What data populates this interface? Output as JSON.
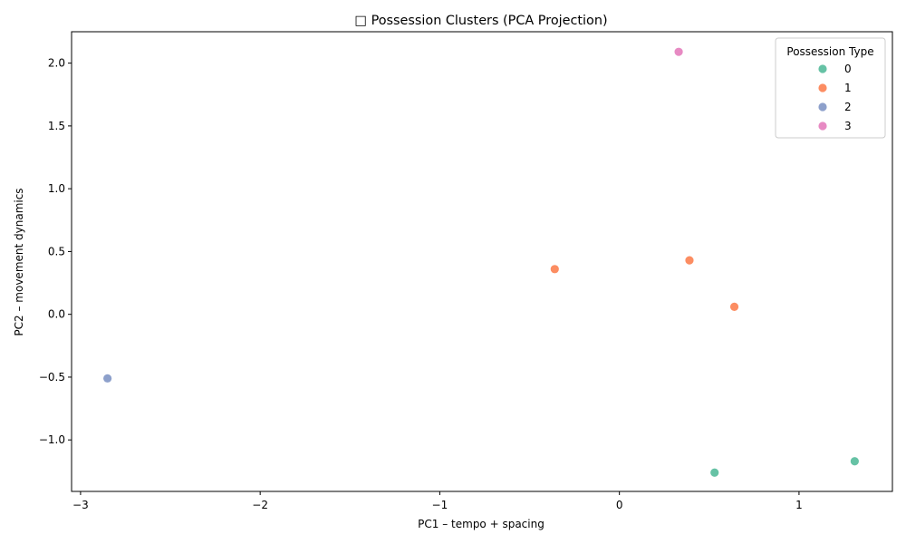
{
  "chart_data": {
    "type": "scatter",
    "title": "□ Possession Clusters (PCA Projection)",
    "xlabel": "PC1 – tempo + spacing",
    "ylabel": "PC2 – movement dynamics",
    "xlim": [
      -3.05,
      1.52
    ],
    "ylim": [
      -1.41,
      2.25
    ],
    "x_ticks": [
      -3,
      -2,
      -1,
      0,
      1
    ],
    "x_tick_labels": [
      "−3",
      "−2",
      "−1",
      "0",
      "1"
    ],
    "y_ticks": [
      -1.0,
      -0.5,
      0.0,
      0.5,
      1.0,
      1.5,
      2.0
    ],
    "y_tick_labels": [
      "−1.0",
      "−0.5",
      "0.0",
      "0.5",
      "1.0",
      "1.5",
      "2.0"
    ],
    "grid": false,
    "legend": {
      "title": "Possession Type",
      "placement": "top-right",
      "entries": [
        "0",
        "1",
        "2",
        "3"
      ]
    },
    "series": [
      {
        "name": "0",
        "color": "#66c2a5",
        "points": [
          [
            0.53,
            -1.26
          ],
          [
            1.31,
            -1.17
          ]
        ]
      },
      {
        "name": "1",
        "color": "#fc8d62",
        "points": [
          [
            -0.36,
            0.36
          ],
          [
            0.39,
            0.43
          ],
          [
            0.64,
            0.06
          ]
        ]
      },
      {
        "name": "2",
        "color": "#8da0cb",
        "points": [
          [
            -2.85,
            -0.51
          ]
        ]
      },
      {
        "name": "3",
        "color": "#e78ac3",
        "points": [
          [
            0.33,
            2.09
          ]
        ]
      }
    ]
  }
}
